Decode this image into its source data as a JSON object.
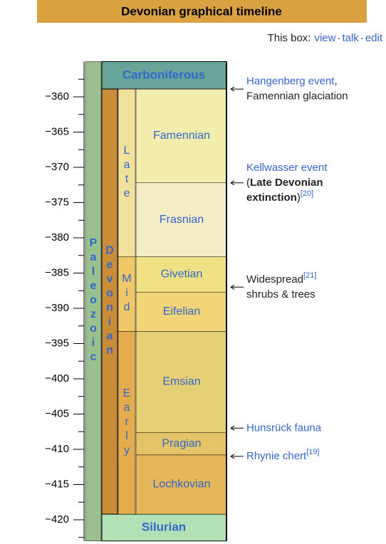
{
  "title": "Devonian graphical timeline",
  "box_links": {
    "label": "This box:",
    "separator": "·",
    "links": [
      "view",
      "talk",
      "edit"
    ]
  },
  "axis": {
    "ylim": [
      -355,
      -423
    ],
    "ticks": [
      {
        "value": -360,
        "label": "−360"
      },
      {
        "value": -365,
        "label": "−365"
      },
      {
        "value": -370,
        "label": "−370"
      },
      {
        "value": -375,
        "label": "−375"
      },
      {
        "value": -380,
        "label": "−380"
      },
      {
        "value": -385,
        "label": "−385"
      },
      {
        "value": -390,
        "label": "−390"
      },
      {
        "value": -395,
        "label": "−395"
      },
      {
        "value": -400,
        "label": "−400"
      },
      {
        "value": -405,
        "label": "−405"
      },
      {
        "value": -410,
        "label": "−410"
      },
      {
        "value": -415,
        "label": "−415"
      },
      {
        "value": -420,
        "label": "−420"
      }
    ],
    "minor_ticks": [
      -357.5,
      -362.5,
      -367.5,
      -372.5,
      -377.5,
      -382.5,
      -387.5,
      -392.5,
      -397.5,
      -402.5,
      -407.5,
      -412.5,
      -417.5,
      -422.5
    ]
  },
  "era": {
    "name": "Paleozoic",
    "color": "#99c08d"
  },
  "periods": [
    {
      "name": "Carboniferous",
      "top": -355,
      "bottom": -358.9,
      "color": "#67a599"
    },
    {
      "name": "Devonian",
      "top": -358.9,
      "bottom": -419.2,
      "color": "#cb8c37"
    },
    {
      "name": "Silurian",
      "top": -419.2,
      "bottom": -423,
      "color": "#b3e1b6"
    }
  ],
  "epochs": [
    {
      "name": "Late",
      "top": -358.9,
      "bottom": -382.7,
      "color": "#f1e19d"
    },
    {
      "name": "Mid",
      "top": -382.7,
      "bottom": -393.3,
      "color": "#f1c868"
    },
    {
      "name": "Early",
      "top": -393.3,
      "bottom": -419.2,
      "color": "#e5ac4d"
    }
  ],
  "stages": [
    {
      "name": "Famennian",
      "top": -358.9,
      "bottom": -372.2,
      "color": "#f2edad"
    },
    {
      "name": "Frasnian",
      "top": -372.2,
      "bottom": -382.7,
      "color": "#f2edc5"
    },
    {
      "name": "Givetian",
      "top": -382.7,
      "bottom": -387.7,
      "color": "#f1e185"
    },
    {
      "name": "Eifelian",
      "top": -387.7,
      "bottom": -393.3,
      "color": "#f1d576"
    },
    {
      "name": "Emsian",
      "top": -393.3,
      "bottom": -407.6,
      "color": "#e5d075"
    },
    {
      "name": "Pragian",
      "top": -407.6,
      "bottom": -410.8,
      "color": "#e5c468"
    },
    {
      "name": "Lochkovian",
      "top": -410.8,
      "bottom": -419.2,
      "color": "#e5b75a"
    }
  ],
  "events": [
    {
      "age": -358.9,
      "lines": [
        [
          {
            "text": "Hangenberg event",
            "style": "link"
          },
          {
            "text": ",",
            "style": "plain"
          }
        ],
        [
          {
            "text": "Famennian glaciation",
            "style": "plain"
          }
        ]
      ]
    },
    {
      "age": -372.2,
      "lines": [
        [
          {
            "text": "Kellwasser event",
            "style": "link"
          }
        ],
        [
          {
            "text": "(",
            "style": "plain"
          },
          {
            "text": "Late Devonian",
            "style": "bold"
          }
        ],
        [
          {
            "text": "extinction",
            "style": "bold"
          },
          {
            "text": ")",
            "style": "plain"
          },
          {
            "text": "[20]",
            "style": "sup"
          }
        ]
      ]
    },
    {
      "age": -387,
      "lines": [
        [
          {
            "text": "Widespread",
            "style": "plain"
          },
          {
            "text": "[21]",
            "style": "sup"
          }
        ],
        [
          {
            "text": "shrubs & trees",
            "style": "plain"
          }
        ]
      ]
    },
    {
      "age": -407,
      "lines": [
        [
          {
            "text": "Hunsrück fauna",
            "style": "link"
          }
        ]
      ]
    },
    {
      "age": -411,
      "lines": [
        [
          {
            "text": "Rhynie chert",
            "style": "link"
          },
          {
            "text": "[19]",
            "style": "sup"
          }
        ]
      ]
    }
  ]
}
